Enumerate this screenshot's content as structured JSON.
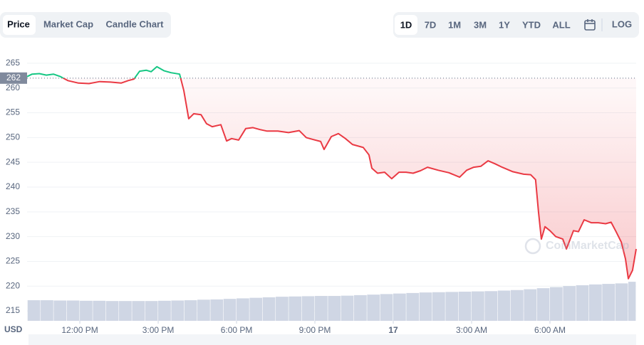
{
  "tabs": {
    "chart_types": [
      "Price",
      "Market Cap",
      "Candle Chart"
    ],
    "active_chart_type": 0,
    "ranges": [
      "1D",
      "7D",
      "1M",
      "3M",
      "1Y",
      "YTD",
      "ALL"
    ],
    "active_range": 0,
    "log": "LOG"
  },
  "chart_data": {
    "type": "line",
    "y_unit": "USD",
    "watermark": "CoinMarketCap",
    "reference": {
      "value": 262
    },
    "colors": {
      "above": "#16c784",
      "below": "#ea3943"
    },
    "x": [
      -2.02,
      -1.83,
      -1.55,
      -1.28,
      -1.01,
      -0.74,
      -0.46,
      -0.05,
      0.35,
      0.76,
      1.17,
      1.58,
      1.85,
      2.07,
      2.29,
      2.54,
      2.73,
      2.95,
      3.22,
      3.49,
      3.82,
      3.98,
      4.17,
      4.36,
      4.64,
      4.85,
      5.07,
      5.4,
      5.62,
      5.81,
      6.08,
      6.35,
      6.63,
      6.9,
      7.17,
      7.58,
      7.99,
      8.4,
      8.67,
      8.94,
      9.22,
      9.35,
      9.63,
      9.9,
      10.17,
      10.44,
      10.85,
      11.07,
      11.18,
      11.4,
      11.67,
      11.94,
      12.22,
      12.49,
      12.76,
      13.04,
      13.31,
      13.72,
      14.13,
      14.54,
      14.81,
      15.08,
      15.35,
      15.63,
      15.9,
      16.17,
      16.58,
      16.99,
      17.26,
      17.45,
      17.56,
      17.67,
      17.81,
      18.0,
      18.22,
      18.49,
      18.63,
      18.76,
      18.9,
      19.09,
      19.31,
      19.58,
      19.85,
      20.13,
      20.34,
      20.53,
      20.73,
      20.89,
      21.0,
      21.16,
      21.3
    ],
    "values": [
      262.3,
      262.8,
      262.9,
      262.6,
      262.8,
      262.3,
      261.5,
      261.0,
      260.9,
      261.3,
      261.2,
      261.0,
      261.5,
      261.8,
      263.4,
      263.6,
      263.3,
      264.3,
      263.5,
      263.1,
      262.8,
      259.5,
      253.8,
      254.8,
      254.6,
      252.8,
      252.2,
      252.6,
      249.3,
      249.8,
      249.5,
      251.8,
      252.0,
      251.6,
      251.3,
      251.3,
      251.0,
      251.4,
      250.0,
      249.6,
      249.2,
      247.6,
      250.2,
      250.8,
      249.8,
      248.6,
      248.0,
      246.5,
      243.8,
      242.8,
      243.0,
      241.7,
      243.0,
      243.0,
      242.8,
      243.3,
      244.0,
      243.4,
      242.9,
      242.0,
      243.4,
      244.0,
      244.2,
      245.3,
      244.7,
      244.0,
      243.1,
      242.6,
      242.5,
      241.5,
      235.0,
      229.5,
      232.0,
      231.2,
      230.0,
      229.5,
      227.5,
      229.3,
      231.2,
      231.0,
      233.4,
      232.8,
      232.8,
      232.6,
      232.9,
      231.0,
      228.9,
      225.5,
      221.5,
      223.2,
      227.5
    ],
    "xlim": [
      -2.02,
      21.3
    ],
    "ylim": [
      213,
      267
    ],
    "y2lim": [
      0,
      100
    ],
    "xticks": [
      {
        "value": 0,
        "label": "12:00 PM"
      },
      {
        "value": 3,
        "label": "3:00 PM"
      },
      {
        "value": 6,
        "label": "6:00 PM"
      },
      {
        "value": 9,
        "label": "9:00 PM"
      },
      {
        "value": 12,
        "label": "17"
      },
      {
        "value": 15,
        "label": "3:00 AM"
      },
      {
        "value": 18,
        "label": "6:00 AM"
      }
    ],
    "yticks": [
      215,
      220,
      225,
      230,
      235,
      240,
      245,
      250,
      255,
      260,
      265
    ],
    "grid": true,
    "volume": {
      "axis": "y2",
      "color": "#cfd6e4",
      "x": [
        -2,
        -1.5,
        -1,
        -0.5,
        0,
        0.5,
        1,
        1.5,
        2,
        2.5,
        3,
        3.5,
        4,
        4.5,
        5,
        5.5,
        6,
        6.5,
        7,
        7.5,
        8,
        8.5,
        9,
        9.5,
        10,
        10.5,
        11,
        11.5,
        12,
        12.5,
        13,
        13.5,
        14,
        14.5,
        15,
        15.5,
        16,
        16.5,
        17,
        17.5,
        18,
        18.5,
        19,
        19.5,
        20,
        20.5,
        21
      ],
      "values": [
        7.7,
        7.7,
        7.6,
        7.6,
        7.5,
        7.5,
        7.4,
        7.4,
        7.4,
        7.4,
        7.5,
        7.6,
        7.7,
        7.9,
        8.0,
        8.2,
        8.4,
        8.6,
        8.8,
        9.0,
        9.1,
        9.2,
        9.3,
        9.3,
        9.4,
        9.6,
        9.8,
        10.0,
        10.2,
        10.4,
        10.6,
        10.7,
        10.8,
        10.9,
        11.0,
        11.1,
        11.3,
        11.5,
        11.8,
        12.2,
        12.6,
        13.0,
        13.3,
        13.6,
        13.8,
        14.0,
        14.6
      ]
    }
  }
}
